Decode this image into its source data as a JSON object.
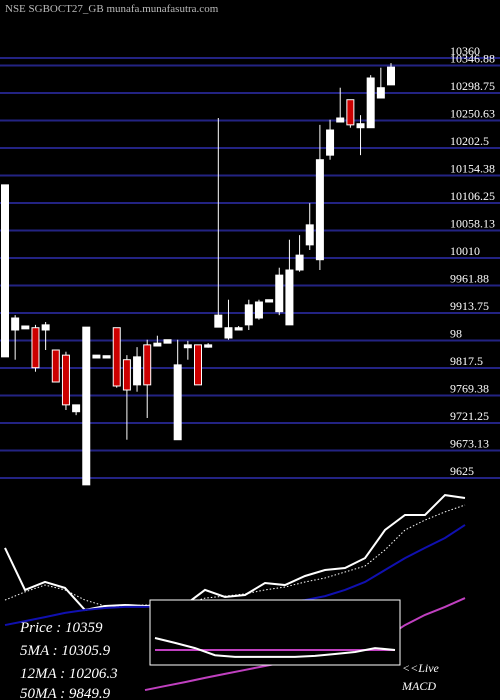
{
  "chart_data": [
    {
      "type": "candlestick",
      "title": "NSE SGBOCT27_GB munafa.munafasutra.com",
      "open": [
        9837,
        9884,
        9886,
        9888,
        9884,
        9849,
        9840,
        9741,
        9613,
        9835,
        9835,
        9888,
        9832,
        9788,
        9858,
        9856,
        9861,
        9692,
        9853,
        9858,
        9854,
        9889,
        9870,
        9884,
        9893,
        9905,
        9933,
        9916,
        9893,
        9989,
        10033,
        10007,
        10190,
        10248,
        10287,
        10238,
        10238,
        10290,
        10313
      ],
      "high": [
        10138,
        9910,
        9891,
        9893,
        9898,
        9849,
        9846,
        9753,
        9889,
        9840,
        9839,
        9888,
        9840,
        9854,
        9867,
        9874,
        9867,
        9867,
        9865,
        9858,
        9861,
        10255,
        9937,
        9891,
        9937,
        9937,
        9937,
        9993,
        10042,
        10050,
        10106,
        10243,
        10252,
        10308,
        10287,
        10260,
        10330,
        10343,
        10351
      ],
      "low": [
        9837,
        9832,
        9886,
        9811,
        9849,
        9793,
        9744,
        9735,
        9613,
        9835,
        9835,
        9783,
        9692,
        9776,
        9730,
        9856,
        9861,
        9692,
        9832,
        9788,
        9853,
        9889,
        9867,
        9884,
        9884,
        9902,
        9933,
        9910,
        9893,
        9986,
        10024,
        9989,
        10182,
        10248,
        10238,
        10190,
        10238,
        10290,
        10313
      ],
      "close": [
        10138,
        9905,
        9891,
        9818,
        9893,
        9793,
        9753,
        9753,
        9889,
        9840,
        9839,
        9786,
        9779,
        9837,
        9788,
        9861,
        9867,
        9823,
        9858,
        9788,
        9858,
        9910,
        9888,
        9888,
        9928,
        9933,
        9937,
        9980,
        9989,
        10015,
        10068,
        10182,
        10234,
        10255,
        10243,
        10245,
        10325,
        10308,
        10344
      ],
      "up_color": "#ffffff",
      "down_color": "#cc0000",
      "grid_color": "#232383",
      "ylim": [
        9604,
        10461.5
      ],
      "yticks": [
        10360,
        10346.88,
        10298.75,
        10250.63,
        10202.5,
        10154.38,
        10106.25,
        10058.13,
        10010,
        9961.88,
        9913.75,
        {
          "value": 9865.63,
          "label": "98"
        },
        9817.5,
        9769.38,
        9721.25,
        9673.13,
        9625
      ],
      "grid": true
    },
    {
      "type": "line",
      "series": [
        {
          "color": "#ffffff",
          "values": [
            10188,
            9998,
            10034,
            10007,
            9907,
            9925,
            9930,
            9925,
            9930,
            9930,
            9998,
            9966,
            9975,
            10029,
            10020,
            10061,
            10088,
            10097,
            10142,
            10269,
            10337,
            10337,
            10427,
            10414
          ]
        },
        {
          "color": "#ffffff",
          "style": "dotted",
          "values": [
            9952,
            9989,
            10020,
            9998,
            9952,
            9925,
            9925,
            9930,
            9925,
            9934,
            9961,
            9970,
            9980,
            9998,
            10011,
            10034,
            10052,
            10079,
            10106,
            10179,
            10269,
            10314,
            10351,
            10382
          ]
        },
        {
          "color": "#1010b0",
          "values": [
            9839,
            9857,
            9875,
            9894,
            9907,
            9916,
            9921,
            9921,
            9925,
            9925,
            9930,
            9930,
            9934,
            9939,
            9943,
            9952,
            9970,
            9998,
            10034,
            10088,
            10142,
            10188,
            10233,
            10292
          ]
        },
        {
          "color": "#c040c0",
          "values": [
            null,
            null,
            null,
            null,
            null,
            null,
            null,
            9545,
            9563,
            9581,
            9600,
            9618,
            9636,
            9654,
            9672,
            9690,
            9708,
            9726,
            9749,
            9780,
            9839,
            9885,
            9921,
            9961
          ]
        }
      ],
      "ylim": [
        9500,
        10450
      ],
      "annotations": [
        "Price : 10359",
        "5MA : 10305.9",
        "12MA : 10206.3",
        "50MA : 9849.9"
      ]
    },
    {
      "type": "macd",
      "series": [
        {
          "color": "#ffffff",
          "values": [
            -1.7,
            -3.2,
            -4.8,
            -7.0,
            -7.5,
            -7.5,
            -7.5,
            -7.5,
            -7.2,
            -6.6,
            -6.0,
            -4.8,
            -5.4
          ]
        },
        {
          "color": "#c040c0",
          "values": [
            -5.4,
            -5.4,
            -5.4,
            -5.4,
            -5.4,
            -5.4,
            -5.4,
            -5.4,
            -5.4,
            -5.4,
            -5.4,
            -5.4,
            -5.4
          ]
        }
      ],
      "ylim": [
        -10,
        10
      ],
      "annotations": [
        "<<Live",
        "MACD"
      ]
    }
  ]
}
